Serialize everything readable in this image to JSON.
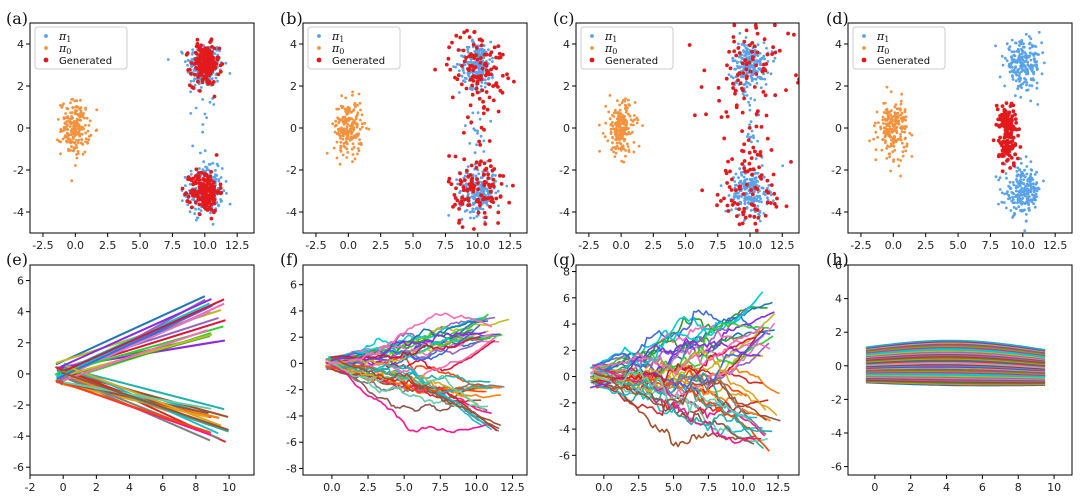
{
  "chart_data": [
    {
      "label": "(a)",
      "type": "scatter",
      "xlim": [
        -3.5,
        13.8
      ],
      "ylim": [
        -5.0,
        5.0
      ],
      "xticks": [
        "-2.5",
        "0.0",
        "2.5",
        "5.0",
        "7.5",
        "10.0",
        "12.5"
      ],
      "yticks": [
        "-4",
        "-2",
        "0",
        "2",
        "4"
      ],
      "legend": [
        "π1",
        "π0",
        "Generated"
      ],
      "series": [
        {
          "name": "π1",
          "color": "#5aa3e8",
          "clusters": [
            {
              "cx": 10,
              "cy": 3,
              "sx": 0.7,
              "sy": 0.55,
              "n": 220
            },
            {
              "cx": 10,
              "cy": -3,
              "sx": 0.7,
              "sy": 0.55,
              "n": 220
            },
            {
              "cx": 10,
              "cy": 0,
              "sx": 0.4,
              "sy": 1.2,
              "n": 20
            }
          ]
        },
        {
          "name": "π0",
          "color": "#f5923e",
          "clusters": [
            {
              "cx": 0,
              "cy": 0,
              "sx": 0.55,
              "sy": 0.65,
              "n": 200
            }
          ]
        },
        {
          "name": "Generated",
          "color": "#e31a1c",
          "clusters": [
            {
              "cx": 10,
              "cy": 3,
              "sx": 0.55,
              "sy": 0.5,
              "n": 180
            },
            {
              "cx": 10,
              "cy": -3,
              "sx": 0.55,
              "sy": 0.5,
              "n": 180
            }
          ]
        }
      ]
    },
    {
      "label": "(b)",
      "type": "scatter",
      "xlim": [
        -3.5,
        13.8
      ],
      "ylim": [
        -5.0,
        5.0
      ],
      "xticks": [
        "-2.5",
        "0.0",
        "2.5",
        "5.0",
        "7.5",
        "10.0",
        "12.5"
      ],
      "yticks": [
        "-4",
        "-2",
        "0",
        "2",
        "4"
      ],
      "legend": [
        "π1",
        "π0",
        "Generated"
      ],
      "series": [
        {
          "name": "π1",
          "color": "#5aa3e8",
          "clusters": [
            {
              "cx": 10,
              "cy": 3,
              "sx": 0.7,
              "sy": 0.55,
              "n": 220
            },
            {
              "cx": 10,
              "cy": -3,
              "sx": 0.7,
              "sy": 0.55,
              "n": 220
            },
            {
              "cx": 10,
              "cy": 0,
              "sx": 0.4,
              "sy": 1.2,
              "n": 20
            }
          ]
        },
        {
          "name": "π0",
          "color": "#f5923e",
          "clusters": [
            {
              "cx": 0,
              "cy": 0,
              "sx": 0.55,
              "sy": 0.65,
              "n": 200
            }
          ]
        },
        {
          "name": "Generated",
          "color": "#e31a1c",
          "clusters": [
            {
              "cx": 10,
              "cy": 3,
              "sx": 1.1,
              "sy": 0.9,
              "n": 110
            },
            {
              "cx": 10,
              "cy": -3,
              "sx": 1.1,
              "sy": 0.9,
              "n": 110
            },
            {
              "cx": 10,
              "cy": 0,
              "sx": 0.9,
              "sy": 1.3,
              "n": 18
            }
          ]
        }
      ]
    },
    {
      "label": "(c)",
      "type": "scatter",
      "xlim": [
        -3.5,
        13.8
      ],
      "ylim": [
        -5.0,
        5.0
      ],
      "xticks": [
        "-2.5",
        "0.0",
        "2.5",
        "5.0",
        "7.5",
        "10.0",
        "12.5"
      ],
      "yticks": [
        "-4",
        "-2",
        "0",
        "2",
        "4"
      ],
      "legend": [
        "π1",
        "π0",
        "Generated"
      ],
      "series": [
        {
          "name": "π1",
          "color": "#5aa3e8",
          "clusters": [
            {
              "cx": 10,
              "cy": 3,
              "sx": 0.7,
              "sy": 0.55,
              "n": 220
            },
            {
              "cx": 10,
              "cy": -3,
              "sx": 0.7,
              "sy": 0.55,
              "n": 220
            },
            {
              "cx": 10,
              "cy": 0,
              "sx": 0.4,
              "sy": 1.2,
              "n": 20
            }
          ]
        },
        {
          "name": "π0",
          "color": "#f5923e",
          "clusters": [
            {
              "cx": 0,
              "cy": 0,
              "sx": 0.55,
              "sy": 0.65,
              "n": 200
            }
          ]
        },
        {
          "name": "Generated",
          "color": "#e31a1c",
          "clusters": [
            {
              "cx": 10,
              "cy": 3,
              "sx": 1.7,
              "sy": 1.2,
              "n": 80
            },
            {
              "cx": 10,
              "cy": -3,
              "sx": 1.7,
              "sy": 1.2,
              "n": 80
            },
            {
              "cx": 9.5,
              "cy": 0,
              "sx": 1.8,
              "sy": 2.0,
              "n": 25
            }
          ]
        }
      ]
    },
    {
      "label": "(d)",
      "type": "scatter",
      "xlim": [
        -3.5,
        13.8
      ],
      "ylim": [
        -5.0,
        5.0
      ],
      "xticks": [
        "-2.5",
        "0.0",
        "2.5",
        "5.0",
        "7.5",
        "10.0",
        "12.5"
      ],
      "yticks": [
        "-4",
        "-2",
        "0",
        "2",
        "4"
      ],
      "legend": [
        "π1",
        "π0",
        "Generated"
      ],
      "series": [
        {
          "name": "π1",
          "color": "#5aa3e8",
          "clusters": [
            {
              "cx": 10,
              "cy": 3,
              "sx": 0.7,
              "sy": 0.55,
              "n": 220
            },
            {
              "cx": 10,
              "cy": -3,
              "sx": 0.7,
              "sy": 0.55,
              "n": 220
            }
          ]
        },
        {
          "name": "π0",
          "color": "#f5923e",
          "clusters": [
            {
              "cx": 0,
              "cy": 0,
              "sx": 0.55,
              "sy": 0.65,
              "n": 200
            }
          ]
        },
        {
          "name": "Generated",
          "color": "#e31a1c",
          "clusters": [
            {
              "cx": 8.7,
              "cy": 0.4,
              "sx": 0.4,
              "sy": 0.4,
              "n": 90
            },
            {
              "cx": 8.9,
              "cy": -1.0,
              "sx": 0.35,
              "sy": 0.4,
              "n": 70
            }
          ]
        }
      ]
    },
    {
      "label": "(e)",
      "type": "line",
      "xlim": [
        -2.0,
        11.5
      ],
      "ylim": [
        -6.5,
        7.0
      ],
      "xticks": [
        "-2",
        "0",
        "2",
        "4",
        "6",
        "8",
        "10"
      ],
      "yticks": [
        "-6",
        "-4",
        "-2",
        "0",
        "2",
        "4",
        "6"
      ],
      "style": "straight",
      "num_lines": 44,
      "x_start": -0.5,
      "x_end": 10.0,
      "up_end": [
        2.0,
        5.0
      ],
      "down_end": [
        -4.4,
        -2.0
      ],
      "start_spread": 0.7
    },
    {
      "label": "(f)",
      "type": "line",
      "xlim": [
        -2.0,
        13.5
      ],
      "ylim": [
        -8.5,
        7.5
      ],
      "xticks": [
        "0.0",
        "2.5",
        "5.0",
        "7.5",
        "10.0",
        "12.5"
      ],
      "yticks": [
        "-8",
        "-6",
        "-4",
        "-2",
        "0",
        "2",
        "4",
        "6"
      ],
      "style": "noisy",
      "num_lines": 44,
      "x_start": -0.5,
      "x_end": 11.0,
      "up_end": [
        1.5,
        3.8
      ],
      "down_end": [
        -5.2,
        -1.2
      ],
      "start_spread": 0.5,
      "noise": 0.17
    },
    {
      "label": "(g)",
      "type": "line",
      "xlim": [
        -2.0,
        14.0
      ],
      "ylim": [
        -7.5,
        8.5
      ],
      "xticks": [
        "0.0",
        "2.5",
        "5.0",
        "7.5",
        "10.0",
        "12.5"
      ],
      "yticks": [
        "-6",
        "-4",
        "-2",
        "0",
        "2",
        "4",
        "6",
        "8"
      ],
      "style": "noisy",
      "num_lines": 44,
      "x_start": -1.0,
      "x_end": 11.5,
      "up_end": [
        1.5,
        6.5
      ],
      "down_end": [
        -5.8,
        -0.5
      ],
      "start_spread": 0.9,
      "noise": 0.33
    },
    {
      "label": "(h)",
      "type": "line",
      "xlim": [
        -1.5,
        11.0
      ],
      "ylim": [
        -6.5,
        6.0
      ],
      "xticks": [
        "0",
        "2",
        "4",
        "6",
        "8",
        "10"
      ],
      "yticks": [
        "-6",
        "-4",
        "-2",
        "0",
        "2",
        "4",
        "6"
      ],
      "style": "flat",
      "num_lines": 40,
      "x_start": -0.5,
      "x_end": 9.5,
      "offset_range": [
        -1.0,
        1.1
      ],
      "bulge": 0.45
    }
  ]
}
